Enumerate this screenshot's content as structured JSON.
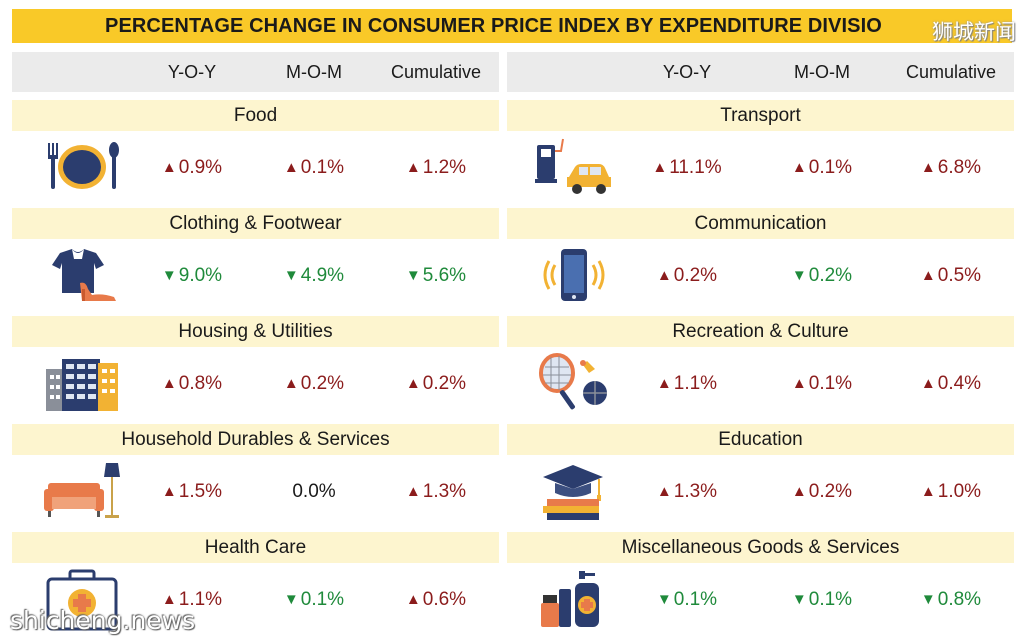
{
  "title": "PERCENTAGE CHANGE IN CONSUMER PRICE INDEX BY EXPENDITURE DIVISIO",
  "watermarks": {
    "top": "狮城新闻",
    "bottom": "shicheng.news"
  },
  "columns": [
    "Y-O-Y",
    "M-O-M",
    "Cumulative"
  ],
  "colors": {
    "title_bg": "#f9c928",
    "header_bg": "#ebebeb",
    "division_bg": "#fdf5cf",
    "increase": "#8b1c1c",
    "decrease": "#1f8a3b"
  },
  "chart_data": {
    "type": "table",
    "title": "PERCENTAGE CHANGE IN CONSUMER PRICE INDEX BY EXPENDITURE DIVISIO",
    "columns": [
      "Y-O-Y",
      "M-O-M",
      "Cumulative"
    ],
    "divisions": [
      {
        "name": "Food",
        "icon": "plate-cutlery-icon",
        "yoy": {
          "dir": "up",
          "text": "0.9%"
        },
        "mom": {
          "dir": "up",
          "text": "0.1%"
        },
        "cum": {
          "dir": "up",
          "text": "1.2%"
        }
      },
      {
        "name": "Clothing & Footwear",
        "icon": "shirt-shoe-icon",
        "yoy": {
          "dir": "down",
          "text": "9.0%"
        },
        "mom": {
          "dir": "down",
          "text": "4.9%"
        },
        "cum": {
          "dir": "down",
          "text": "5.6%"
        }
      },
      {
        "name": "Housing & Utilities",
        "icon": "buildings-icon",
        "yoy": {
          "dir": "up",
          "text": "0.8%"
        },
        "mom": {
          "dir": "up",
          "text": "0.2%"
        },
        "cum": {
          "dir": "up",
          "text": "0.2%"
        }
      },
      {
        "name": "Household Durables & Services",
        "icon": "sofa-lamp-icon",
        "yoy": {
          "dir": "up",
          "text": "1.5%"
        },
        "mom": {
          "dir": "flat",
          "text": "0.0%"
        },
        "cum": {
          "dir": "up",
          "text": "1.3%"
        }
      },
      {
        "name": "Health Care",
        "icon": "medical-kit-icon",
        "yoy": {
          "dir": "up",
          "text": "1.1%"
        },
        "mom": {
          "dir": "down",
          "text": "0.1%"
        },
        "cum": {
          "dir": "up",
          "text": "0.6%"
        }
      },
      {
        "name": "Transport",
        "icon": "fuel-pump-car-icon",
        "yoy": {
          "dir": "up",
          "text": "11.1%"
        },
        "mom": {
          "dir": "up",
          "text": "0.1%"
        },
        "cum": {
          "dir": "up",
          "text": "6.8%"
        }
      },
      {
        "name": "Communication",
        "icon": "smartphone-icon",
        "yoy": {
          "dir": "up",
          "text": "0.2%"
        },
        "mom": {
          "dir": "down",
          "text": "0.2%"
        },
        "cum": {
          "dir": "up",
          "text": "0.5%"
        }
      },
      {
        "name": "Recreation & Culture",
        "icon": "racket-ball-icon",
        "yoy": {
          "dir": "up",
          "text": "1.1%"
        },
        "mom": {
          "dir": "up",
          "text": "0.1%"
        },
        "cum": {
          "dir": "up",
          "text": "0.4%"
        }
      },
      {
        "name": "Education",
        "icon": "graduation-cap-books-icon",
        "yoy": {
          "dir": "up",
          "text": "1.3%"
        },
        "mom": {
          "dir": "up",
          "text": "0.2%"
        },
        "cum": {
          "dir": "up",
          "text": "1.0%"
        }
      },
      {
        "name": "Miscellaneous Goods & Services",
        "icon": "toiletries-icon",
        "yoy": {
          "dir": "down",
          "text": "0.1%"
        },
        "mom": {
          "dir": "down",
          "text": "0.1%"
        },
        "cum": {
          "dir": "down",
          "text": "0.8%"
        }
      }
    ]
  }
}
